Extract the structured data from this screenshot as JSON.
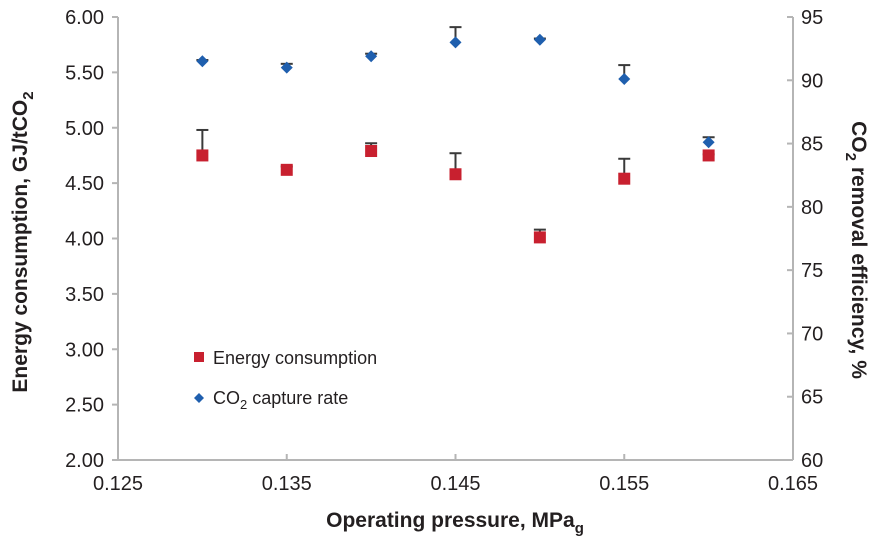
{
  "chart_data": {
    "type": "scatter",
    "title": "",
    "xlabel": "Operating pressure, MPa",
    "xlabel_subscript": "g",
    "ylabel_left": "Energy consumption, GJ/tCO",
    "ylabel_left_subscript": "2",
    "ylabel_right": "removal efficiency, %",
    "ylabel_right_prefix": "CO",
    "ylabel_right_subscript": "2",
    "xlim": [
      0.125,
      0.165
    ],
    "ylim_left": [
      2.0,
      6.0
    ],
    "ylim_right": [
      60,
      95
    ],
    "x_ticks": [
      "0.125",
      "0.135",
      "0.145",
      "0.155",
      "0.165"
    ],
    "x_tick_values": [
      0.125,
      0.135,
      0.145,
      0.155,
      0.165
    ],
    "y_left_ticks": [
      "6.00",
      "5.50",
      "5.00",
      "4.50",
      "4.00",
      "3.50",
      "3.00",
      "2.50",
      "2.00"
    ],
    "y_left_tick_values": [
      6.0,
      5.5,
      5.0,
      4.5,
      4.0,
      3.5,
      3.0,
      2.5,
      2.0
    ],
    "y_right_ticks": [
      "95",
      "90",
      "85",
      "80",
      "75",
      "70",
      "65",
      "60"
    ],
    "y_right_tick_values": [
      95,
      90,
      85,
      80,
      75,
      70,
      65,
      60
    ],
    "grid": false,
    "legend_position": "lower-left",
    "series": [
      {
        "name": "Energy consumption",
        "axis": "left",
        "marker": "square",
        "color": "#c8202f",
        "x": [
          0.13,
          0.135,
          0.14,
          0.145,
          0.15,
          0.155,
          0.16
        ],
        "y": [
          4.75,
          4.62,
          4.79,
          4.58,
          4.01,
          4.54,
          4.75
        ],
        "error_upper": [
          4.98,
          4.65,
          4.86,
          4.77,
          4.08,
          4.72,
          4.76
        ]
      },
      {
        "name": "CO",
        "name_subscript": "2",
        "name_suffix": " capture rate",
        "axis": "right",
        "marker": "diamond",
        "color": "#1f5fae",
        "x": [
          0.13,
          0.135,
          0.14,
          0.145,
          0.15,
          0.155,
          0.16
        ],
        "y": [
          91.5,
          91.0,
          91.9,
          93.0,
          93.2,
          90.1,
          85.1
        ],
        "error_upper": [
          91.6,
          91.3,
          92.1,
          94.2,
          93.3,
          91.2,
          85.5
        ]
      }
    ]
  },
  "colors": {
    "axis": "#b5b5b5",
    "errorbar": "#3a3a3a",
    "text": "#231f20"
  }
}
